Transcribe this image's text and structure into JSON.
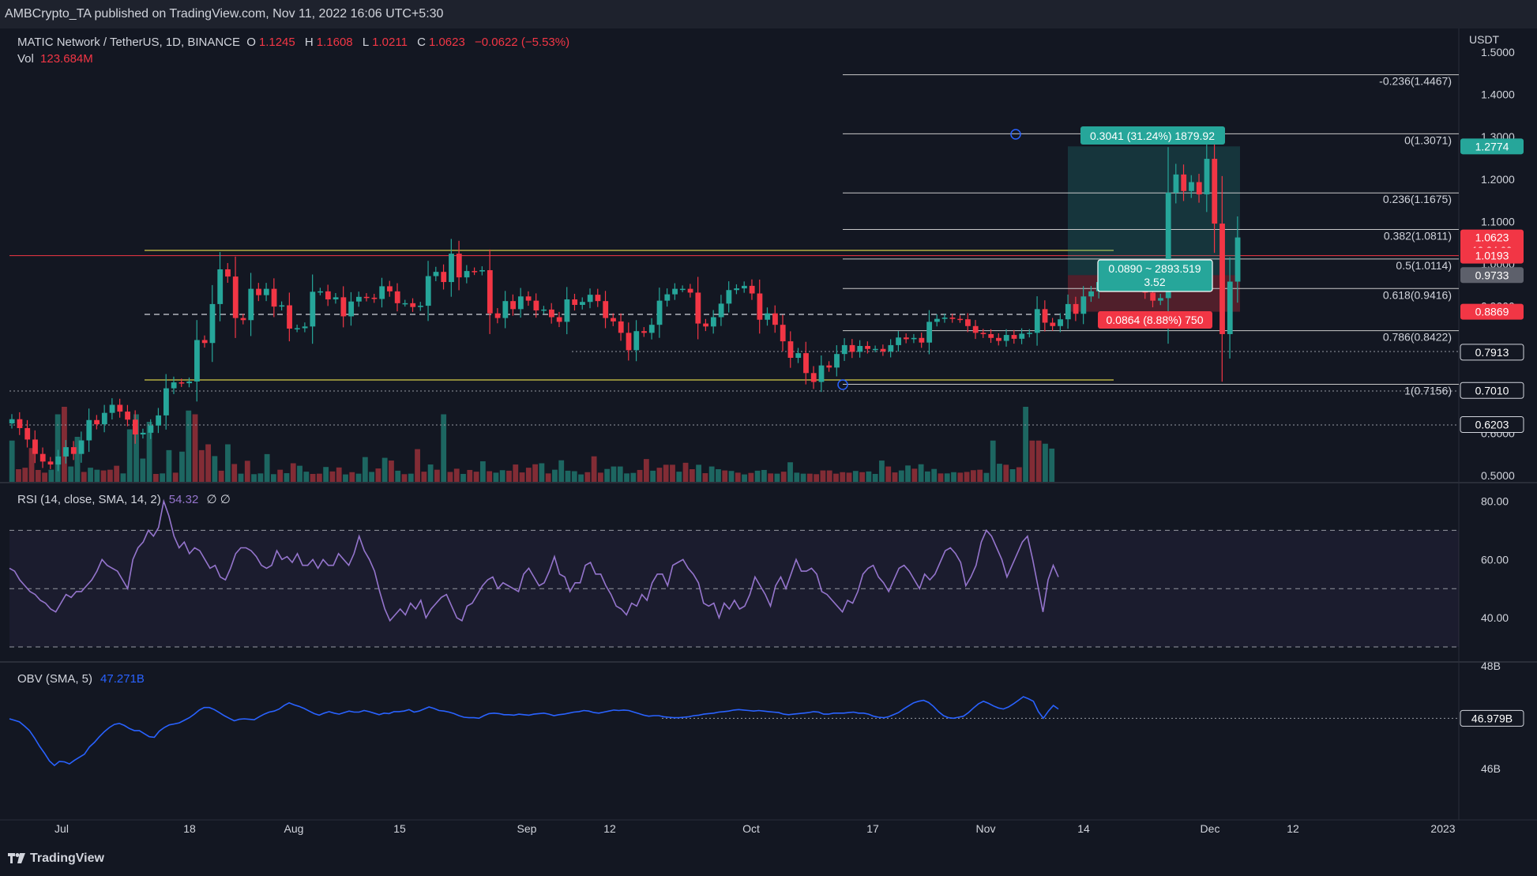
{
  "header": {
    "published": "AMBCrypto_TA published on TradingView.com, Nov 11, 2022 16:06 UTC+5:30",
    "pair": "MATIC Network / TetherUS, 1D, BINANCE",
    "o_label": "O",
    "o_value": "1.1245",
    "h_label": "H",
    "h_value": "1.1608",
    "l_label": "L",
    "l_value": "1.0211",
    "c_label": "C",
    "c_value": "1.0623",
    "change": "−0.0622 (−5.53%)",
    "vol_label": "Vol",
    "vol_value": "123.684M",
    "currency": "USDT"
  },
  "indicators": {
    "rsi_label": "RSI (14, close, SMA, 14, 2)",
    "rsi_value": "54.32",
    "rsi_extra": "∅ ∅",
    "obv_label": "OBV (SMA, 5)",
    "obv_value": "47.271B"
  },
  "footer": {
    "brand": "TradingView"
  },
  "colors": {
    "bg": "#131722",
    "up": "#26a69a",
    "down": "#f23645",
    "rsi": "#9575cd",
    "obv": "#2962ff",
    "fib": "#c9c9c9",
    "support": "#d4cc48"
  },
  "chart_data": [
    {
      "type": "candlestick",
      "title": "MATIC Network / TetherUS, 1D, BINANCE",
      "ylim": [
        0.48,
        1.53
      ],
      "y_ticks": [
        "1.5000",
        "1.4000",
        "1.3000",
        "1.2000",
        "1.1000",
        "1.0000",
        "0.9000",
        "0.8000",
        "0.7000",
        "0.6000",
        "0.5000"
      ],
      "x_ticks": [
        "Jul",
        "18",
        "Aug",
        "15",
        "Sep",
        "12",
        "Oct",
        "17",
        "Nov",
        "14",
        "Dec",
        "12",
        "2023"
      ],
      "closes": [
        0.633,
        0.612,
        0.585,
        0.551,
        0.533,
        0.526,
        0.545,
        0.567,
        0.551,
        0.583,
        0.631,
        0.621,
        0.648,
        0.667,
        0.651,
        0.632,
        0.597,
        0.601,
        0.618,
        0.642,
        0.706,
        0.72,
        0.718,
        0.722,
        0.82,
        0.813,
        0.905,
        0.987,
        0.97,
        0.872,
        0.867,
        0.941,
        0.926,
        0.941,
        0.899,
        0.902,
        0.847,
        0.848,
        0.852,
        0.934,
        0.935,
        0.916,
        0.921,
        0.876,
        0.911,
        0.922,
        0.92,
        0.917,
        0.947,
        0.935,
        0.907,
        0.907,
        0.898,
        0.901,
        0.971,
        0.981,
        0.957,
        1.024,
        0.968,
        0.983,
        0.982,
        0.985,
        0.883,
        0.872,
        0.912,
        0.893,
        0.923,
        0.913,
        0.89,
        0.892,
        0.874,
        0.863,
        0.916,
        0.903,
        0.91,
        0.927,
        0.912,
        0.872,
        0.864,
        0.837,
        0.796,
        0.841,
        0.837,
        0.856,
        0.913,
        0.928,
        0.941,
        0.941,
        0.932,
        0.859,
        0.852,
        0.874,
        0.906,
        0.938,
        0.942,
        0.948,
        0.93,
        0.868,
        0.883,
        0.856,
        0.817,
        0.778,
        0.789,
        0.742,
        0.721,
        0.76,
        0.755,
        0.787,
        0.808,
        0.792,
        0.806,
        0.799,
        0.799,
        0.793,
        0.808,
        0.826,
        0.822,
        0.825,
        0.814,
        0.863,
        0.87,
        0.873,
        0.87,
        0.869,
        0.853,
        0.837,
        0.834,
        0.825,
        0.818,
        0.832,
        0.823,
        0.835,
        0.837,
        0.893,
        0.861,
        0.853,
        0.869,
        0.905,
        0.882,
        0.923,
        0.935,
        0.957,
        0.953,
        0.957,
        0.966,
        0.959,
        0.949,
        0.932,
        0.913,
        0.919,
        1.168,
        1.211,
        1.172,
        1.193,
        1.164,
        1.248,
        1.095,
        0.834,
        0.958,
        1.0623
      ],
      "volume_unit": "relative",
      "fib_levels": [
        {
          "label": "-0.236(1.4467)",
          "price": 1.4467
        },
        {
          "label": "0(1.3071)",
          "price": 1.3071
        },
        {
          "label": "0.236(1.1675)",
          "price": 1.1675
        },
        {
          "label": "0.382(1.0811)",
          "price": 1.0811
        },
        {
          "label": "0.5(1.0114)",
          "price": 1.0114
        },
        {
          "label": "0.618(0.9416)",
          "price": 0.9416
        },
        {
          "label": "0.786(0.8422)",
          "price": 0.8422
        },
        {
          "label": "1(0.7156)",
          "price": 0.7156
        }
      ],
      "price_tags": [
        {
          "label": "1.2774",
          "price": 1.2774,
          "color": "#26a69a"
        },
        {
          "label": "1.0623",
          "price": 1.0623,
          "color": "#f23645",
          "sub": "13:24:00"
        },
        {
          "label": "1.0193",
          "price": 1.0193,
          "color": "#f23645"
        },
        {
          "label": "0.9733",
          "price": 0.9733,
          "color": "#5d606b"
        },
        {
          "label": "0.8869",
          "price": 0.8869,
          "color": "#f23645"
        },
        {
          "label": "0.7913",
          "price": 0.7913,
          "color": "#131722"
        },
        {
          "label": "0.7010",
          "price": 0.701,
          "color": "#131722"
        },
        {
          "label": "0.6203",
          "price": 0.6203,
          "color": "#131722"
        }
      ],
      "position": {
        "entry": 0.9733,
        "target": 1.2774,
        "stop": 0.8869,
        "target_label": "0.3041 (31.24%) 1879.92",
        "mid_label_1": "0.0890 ~ 2893.519",
        "mid_label_2": "3.52",
        "stop_label": "0.0864 (8.88%) 750"
      },
      "support_levels": [
        1.0193,
        0.7913
      ]
    },
    {
      "type": "line",
      "title": "RSI (14, close, SMA, 14, 2)",
      "ylim": [
        28,
        87
      ],
      "y_ticks": [
        "80.00",
        "60.00",
        "40.00"
      ],
      "bands": [
        70,
        50,
        30
      ],
      "values": [
        57,
        56,
        53,
        51,
        49,
        48,
        46,
        45,
        43,
        42,
        45,
        48,
        47,
        49,
        49,
        51,
        53,
        56,
        60,
        58,
        57,
        56,
        53,
        50,
        60,
        64,
        66,
        70,
        68,
        71,
        80,
        75,
        68,
        64,
        66,
        62,
        64,
        63,
        60,
        57,
        58,
        54,
        53,
        57,
        62,
        64,
        64,
        63,
        61,
        58,
        57,
        58,
        63,
        60,
        61,
        59,
        62,
        58,
        58,
        60,
        57,
        60,
        58,
        58,
        62,
        60,
        58,
        62,
        68,
        63,
        60,
        56,
        49,
        43,
        39,
        41,
        43,
        41,
        45,
        43,
        46,
        40,
        43,
        45,
        47,
        48,
        44,
        40,
        39,
        44,
        45,
        48,
        51,
        53,
        54,
        50,
        52,
        51,
        50,
        49,
        55,
        57,
        54,
        51,
        52,
        56,
        61,
        55,
        54,
        49,
        52,
        52,
        58,
        59,
        55,
        55,
        51,
        48,
        44,
        43,
        41,
        45,
        44,
        48,
        46,
        52,
        55,
        55,
        51,
        58,
        59,
        60,
        57,
        55,
        52,
        45,
        44,
        45,
        40,
        45,
        43,
        46,
        43,
        44,
        48,
        54,
        51,
        48,
        44,
        51,
        54,
        50,
        55,
        60,
        56,
        56,
        57,
        55,
        49,
        48,
        46,
        44,
        42,
        46,
        45,
        49,
        55,
        57,
        58,
        54,
        52,
        49,
        53,
        57,
        58,
        56,
        53,
        50,
        55,
        53,
        55,
        59,
        63,
        64,
        62,
        59,
        51,
        54,
        58,
        66,
        70,
        68,
        64,
        60,
        54,
        58,
        62,
        66,
        68,
        60,
        51,
        42,
        53,
        58,
        54
      ]
    },
    {
      "type": "line",
      "title": "OBV (SMA, 5)",
      "ylim": [
        45.55,
        48.18
      ],
      "y_ticks": [
        "48B",
        "46B"
      ],
      "marker": {
        "label": "46.979B",
        "value": 46.979
      },
      "values": [
        46.97,
        46.94,
        46.91,
        46.83,
        46.74,
        46.6,
        46.44,
        46.3,
        46.15,
        46.06,
        46.14,
        46.13,
        46.09,
        46.16,
        46.22,
        46.28,
        46.42,
        46.51,
        46.62,
        46.72,
        46.8,
        46.86,
        46.88,
        46.84,
        46.78,
        46.74,
        46.74,
        46.68,
        46.62,
        46.61,
        46.73,
        46.8,
        46.85,
        46.87,
        46.89,
        46.94,
        46.99,
        47.06,
        47.14,
        47.19,
        47.19,
        47.15,
        47.09,
        47.03,
        46.98,
        46.93,
        46.96,
        46.97,
        46.96,
        46.95,
        47.01,
        47.06,
        47.1,
        47.12,
        47.16,
        47.23,
        47.28,
        47.24,
        47.21,
        47.17,
        47.12,
        47.07,
        47.04,
        47.08,
        47.11,
        47.08,
        47.06,
        47.09,
        47.12,
        47.1,
        47.1,
        47.13,
        47.11,
        47.08,
        47.05,
        47.08,
        47.07,
        47.11,
        47.11,
        47.12,
        47.15,
        47.1,
        47.12,
        47.16,
        47.2,
        47.17,
        47.13,
        47.12,
        47.1,
        47.07,
        47.03,
        47.0,
        46.99,
        46.99,
        46.98,
        47.03,
        47.07,
        47.08,
        47.07,
        47.05,
        47.05,
        47.04,
        47.06,
        47.05,
        47.04,
        47.06,
        47.07,
        47.08,
        47.06,
        47.03,
        47.05,
        47.06,
        47.08,
        47.1,
        47.11,
        47.13,
        47.12,
        47.09,
        47.08,
        47.1,
        47.12,
        47.14,
        47.13,
        47.14,
        47.13,
        47.1,
        47.07,
        47.04,
        47.02,
        47.03,
        47.03,
        47.01,
        47.0,
        46.99,
        46.99,
        47.0,
        47.01,
        47.03,
        47.04,
        47.06,
        47.07,
        47.08,
        47.1,
        47.11,
        47.12,
        47.14,
        47.15,
        47.14,
        47.13,
        47.12,
        47.13,
        47.12,
        47.11,
        47.1,
        47.09,
        47.06,
        47.05,
        47.06,
        47.07,
        47.08,
        47.09,
        47.11,
        47.1,
        47.06,
        47.06,
        47.08,
        47.08,
        47.08,
        47.09,
        47.1,
        47.08,
        47.08,
        47.06,
        47.02,
        47.0,
        46.99,
        47.01,
        47.05,
        47.09,
        47.16,
        47.22,
        47.28,
        47.31,
        47.33,
        47.29,
        47.21,
        47.11,
        47.03,
        46.99,
        46.98,
        47.0,
        47.02,
        47.09,
        47.18,
        47.26,
        47.31,
        47.27,
        47.22,
        47.18,
        47.16,
        47.2,
        47.26,
        47.33,
        47.4,
        47.36,
        47.31,
        47.11,
        46.98,
        47.12,
        47.23,
        47.16
      ]
    }
  ]
}
